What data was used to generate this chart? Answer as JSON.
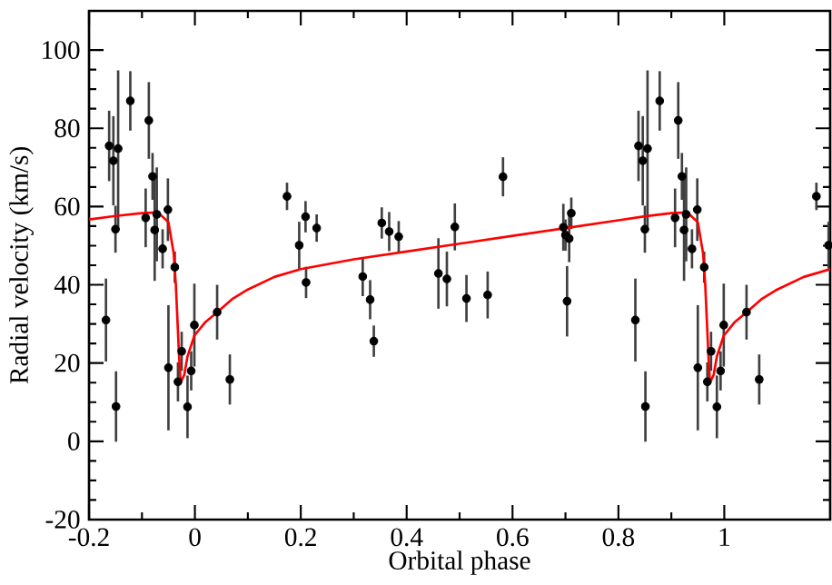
{
  "chart_data": {
    "type": "scatter",
    "xlabel": "Orbital phase",
    "ylabel": "Radial velocity (km/s)",
    "xlim": [
      -0.2,
      1.2
    ],
    "ylim": [
      -20,
      110
    ],
    "xticks": [
      -0.2,
      0,
      0.2,
      0.4,
      0.6,
      0.8,
      1
    ],
    "yticks": [
      -20,
      0,
      20,
      40,
      60,
      80,
      100
    ],
    "grid": false,
    "series": [
      {
        "color": "#000000",
        "marker": "circle",
        "x": [
          -0.168,
          -0.162,
          -0.154,
          -0.15,
          -0.145,
          -0.149,
          -0.122,
          -0.093,
          -0.087,
          -0.08,
          -0.076,
          -0.072,
          -0.061,
          -0.051,
          -0.05,
          -0.038,
          -0.032,
          -0.025,
          -0.014,
          -0.007,
          -0.001,
          0.042,
          0.066,
          0.174,
          0.197,
          0.209,
          0.21,
          0.23,
          0.317,
          0.331,
          0.338,
          0.353,
          0.367,
          0.385,
          0.46,
          0.476,
          0.491,
          0.513,
          0.553,
          0.582,
          0.696,
          0.7,
          0.703,
          0.711,
          0.707,
          0.832,
          0.838,
          0.846,
          0.85,
          0.855,
          0.851,
          0.878,
          0.907,
          0.913,
          0.92,
          0.924,
          0.928,
          0.939,
          0.949,
          0.95,
          0.962,
          0.968,
          0.975,
          0.986,
          0.993,
          0.999,
          1.042,
          1.066,
          1.174,
          1.197
        ],
        "values": [
          31,
          75.5,
          71.7,
          54.2,
          74.8,
          8.9,
          87,
          57.1,
          82,
          67.7,
          54,
          58,
          49.2,
          59.2,
          18.8,
          44.5,
          15.2,
          23,
          8.8,
          18,
          29.7,
          33,
          15.8,
          62.6,
          50.1,
          57.4,
          40.6,
          54.5,
          42.1,
          36.2,
          25.6,
          55.8,
          53.6,
          52.3,
          42.9,
          41.5,
          54.8,
          36.5,
          37.4,
          67.6,
          54.7,
          52.7,
          35.8,
          58.3,
          51.8,
          31,
          75.5,
          71.7,
          54.2,
          74.8,
          8.9,
          87,
          57.1,
          82,
          67.7,
          54,
          58,
          49.2,
          59.2,
          18.8,
          44.5,
          15.2,
          23,
          8.8,
          18,
          29.7,
          33,
          15.8,
          62.6,
          50.1
        ],
        "errors": [
          10.6,
          9,
          11.4,
          6,
          20,
          9,
          7.6,
          7.5,
          9.8,
          6,
          13,
          12,
          5,
          8,
          16,
          4,
          5,
          5,
          8,
          5,
          10.6,
          7,
          6.4,
          3.5,
          6,
          4,
          4,
          3.5,
          5,
          5,
          4,
          4,
          5,
          4,
          9,
          7,
          6,
          6,
          6,
          5,
          6,
          4,
          9,
          4,
          6,
          10.6,
          9,
          11.4,
          6,
          20,
          9,
          7.6,
          7.5,
          9.8,
          6,
          13,
          12,
          5,
          8,
          16,
          4,
          5,
          5,
          8,
          5,
          10.6,
          7,
          6.4,
          3.5,
          6
        ]
      },
      {
        "type": "line",
        "color": "#ff0000",
        "marker": "none",
        "line_style": "solid",
        "x": [
          -0.2,
          -0.15,
          -0.1,
          -0.07,
          -0.05,
          -0.04,
          -0.036,
          -0.03,
          -0.027,
          -0.02,
          -0.014,
          -0.001,
          0.02,
          0.042,
          0.07,
          0.1,
          0.15,
          0.2,
          0.3,
          0.4,
          0.5,
          0.6,
          0.7,
          0.8,
          0.85,
          0.9,
          0.93,
          0.95,
          0.96,
          0.964,
          0.97,
          0.973,
          0.98,
          0.986,
          0.999,
          1.02,
          1.042,
          1.07,
          1.1,
          1.15,
          1.2
        ],
        "values": [
          56.7,
          57.6,
          58.3,
          58.5,
          56,
          48,
          40,
          22,
          15,
          17,
          21.7,
          27,
          30.5,
          33,
          36.3,
          38.8,
          42,
          44,
          46.5,
          48.5,
          50.5,
          52.5,
          54.5,
          56.5,
          57.5,
          58.3,
          58.5,
          56,
          48,
          40,
          22,
          15,
          17,
          21.7,
          27,
          30.5,
          33,
          36.3,
          38.8,
          42,
          44
        ]
      }
    ]
  }
}
